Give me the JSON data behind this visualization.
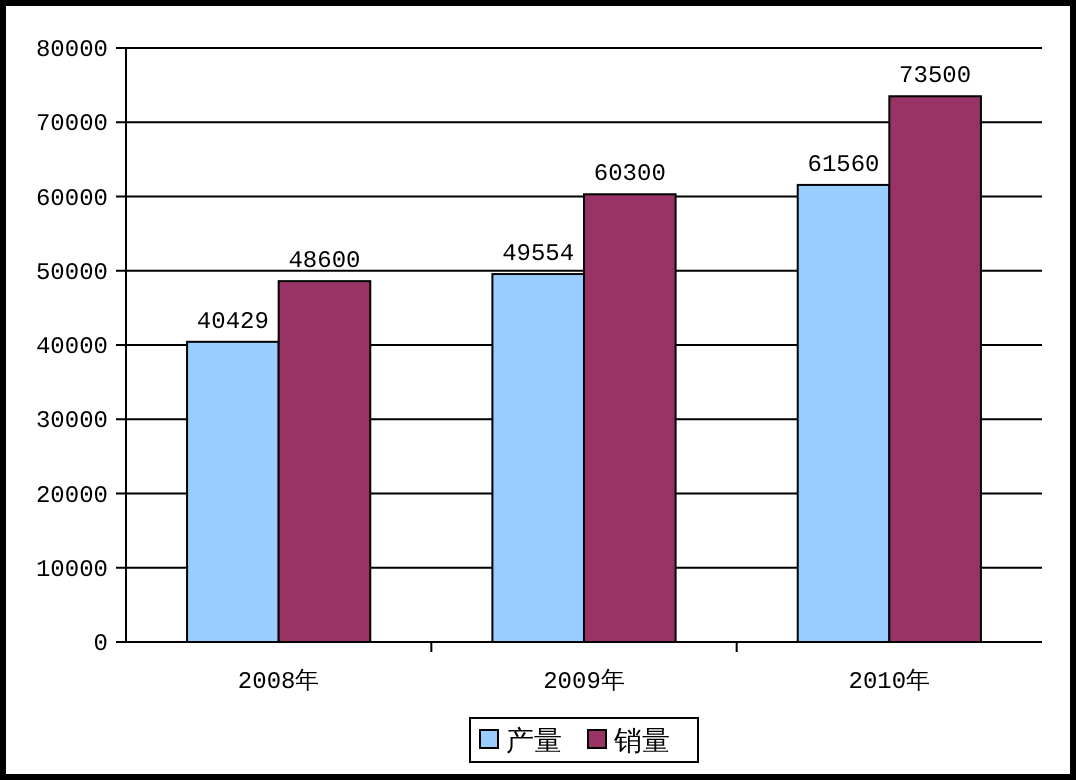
{
  "chart_data": {
    "type": "bar",
    "categories": [
      "2008年",
      "2009年",
      "2010年"
    ],
    "series": [
      {
        "name": "产量",
        "color": "#99ccff",
        "values": [
          40429,
          49554,
          61560
        ]
      },
      {
        "name": "销量",
        "color": "#993366",
        "values": [
          48600,
          60300,
          73500
        ]
      }
    ],
    "ylim": [
      0,
      80000
    ],
    "yticks": [
      0,
      10000,
      20000,
      30000,
      40000,
      50000,
      60000,
      70000,
      80000
    ],
    "grid": "y",
    "legend": "bottom",
    "data_labels": true
  }
}
